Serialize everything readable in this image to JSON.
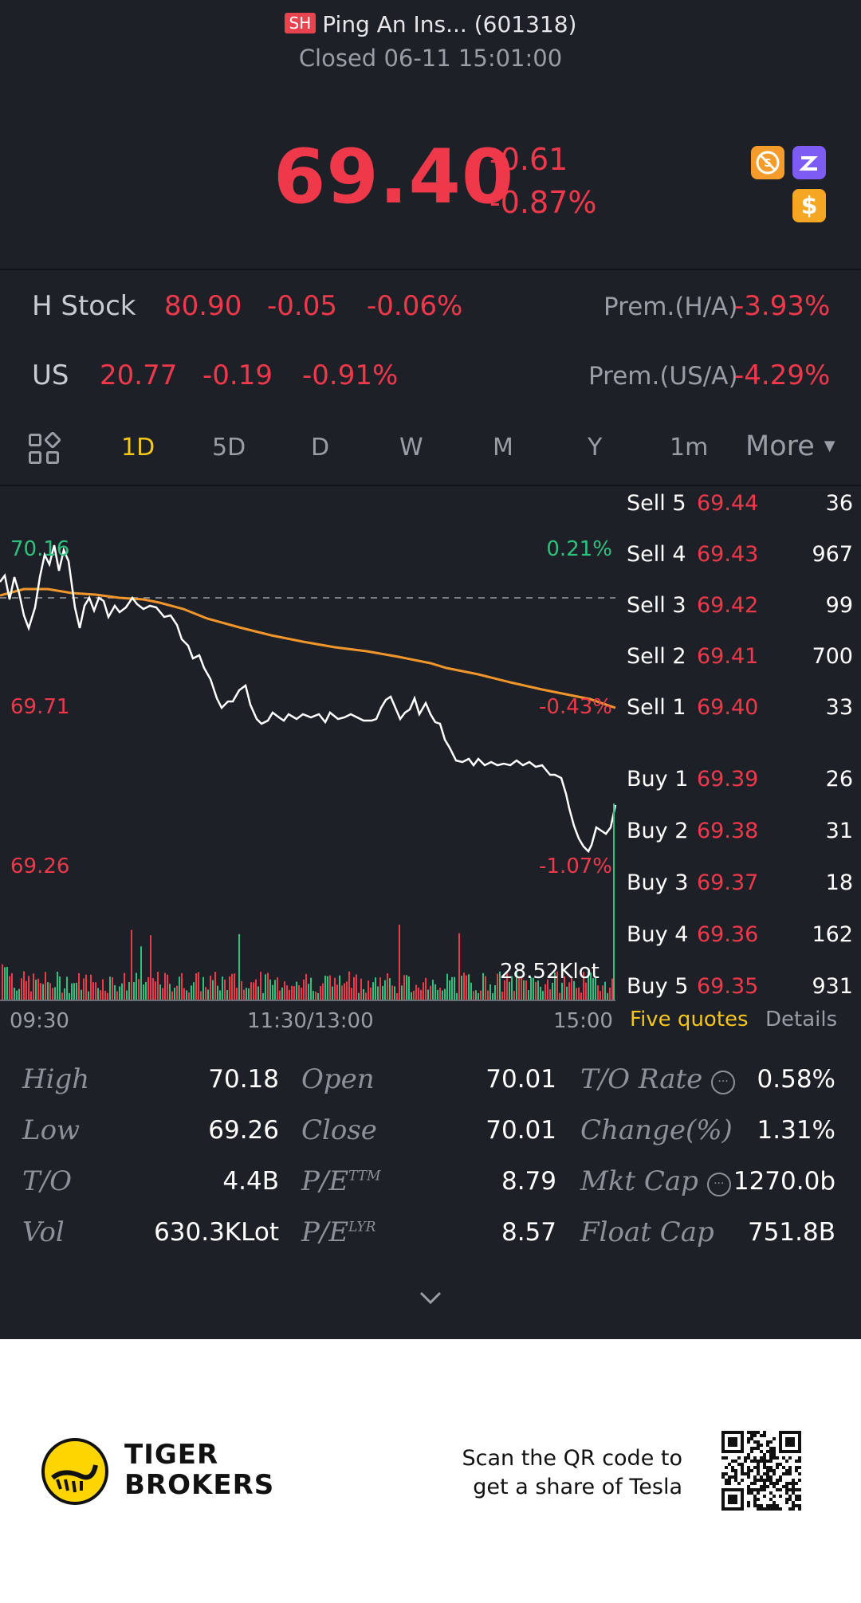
{
  "header": {
    "exchange_badge": "SH",
    "title": "Ping An Ins... (601318)",
    "status": "Closed 06-11 15:01:00",
    "price": "69.40",
    "change": "-0.61",
    "change_pct": "-0.87%",
    "icons": [
      "no-shorting-icon",
      "margin-icon",
      "dollar-icon"
    ]
  },
  "related": {
    "h_stock": {
      "label": "H Stock",
      "price": "80.90",
      "change": "-0.05",
      "change_pct": "-0.06%",
      "prem_label": "Prem.(H/A)",
      "prem_value": "-3.93%"
    },
    "us": {
      "label": "US",
      "price": "20.77",
      "change": "-0.19",
      "change_pct": "-0.91%",
      "prem_label": "Prem.(US/A)",
      "prem_value": "-4.29%"
    }
  },
  "tabs": {
    "items": [
      "1D",
      "5D",
      "D",
      "W",
      "M",
      "Y",
      "1m"
    ],
    "active": "1D",
    "more": "More"
  },
  "chart": {
    "high_price": "70.16",
    "mid_price": "69.71",
    "low_price": "69.26",
    "high_pct": "0.21%",
    "mid_pct": "-0.43%",
    "low_pct": "-1.07%",
    "volume_label": "28.52Klot",
    "time_start": "09:30",
    "time_mid": "11:30/13:00",
    "time_end": "15:00",
    "colors": {
      "up": "#2ec27e",
      "down": "#f0384b",
      "price_line": "#ffffff",
      "avg_line": "#f0962a"
    }
  },
  "orderbook": {
    "sell": [
      {
        "label": "Sell 5",
        "price": "69.44",
        "qty": "36"
      },
      {
        "label": "Sell 4",
        "price": "69.43",
        "qty": "967"
      },
      {
        "label": "Sell 3",
        "price": "69.42",
        "qty": "99"
      },
      {
        "label": "Sell 2",
        "price": "69.41",
        "qty": "700"
      },
      {
        "label": "Sell 1",
        "price": "69.40",
        "qty": "33"
      }
    ],
    "buy": [
      {
        "label": "Buy 1",
        "price": "69.39",
        "qty": "26"
      },
      {
        "label": "Buy 2",
        "price": "69.38",
        "qty": "31"
      },
      {
        "label": "Buy 3",
        "price": "69.37",
        "qty": "18"
      },
      {
        "label": "Buy 4",
        "price": "69.36",
        "qty": "162"
      },
      {
        "label": "Buy 5",
        "price": "69.35",
        "qty": "931"
      }
    ],
    "tab_active": "Five quotes",
    "tab_other": "Details"
  },
  "stats": {
    "high": {
      "label": "High",
      "value": "70.18"
    },
    "low": {
      "label": "Low",
      "value": "69.26"
    },
    "turnover": {
      "label": "T/O",
      "value": "4.4B"
    },
    "vol": {
      "label": "Vol",
      "value": "630.3KLot"
    },
    "open": {
      "label": "Open",
      "value": "70.01"
    },
    "close": {
      "label": "Close",
      "value": "70.01"
    },
    "pe_ttm": {
      "label": "P/E",
      "sup": "TTM",
      "value": "8.79"
    },
    "pe_lyr": {
      "label": "P/E",
      "sup": "LYR",
      "value": "8.57"
    },
    "to_rate": {
      "label": "T/O Rate",
      "value": "0.58%"
    },
    "change_pct": {
      "label": "Change(%)",
      "value": "1.31%"
    },
    "mkt_cap": {
      "label": "Mkt Cap",
      "value": "1270.0b"
    },
    "float_cap": {
      "label": "Float Cap",
      "value": "751.8B"
    }
  },
  "footer": {
    "brand_line1": "TIGER",
    "brand_line2": "BROKERS",
    "promo_line1": "Scan the QR code to",
    "promo_line2": "get a share of Tesla"
  }
}
